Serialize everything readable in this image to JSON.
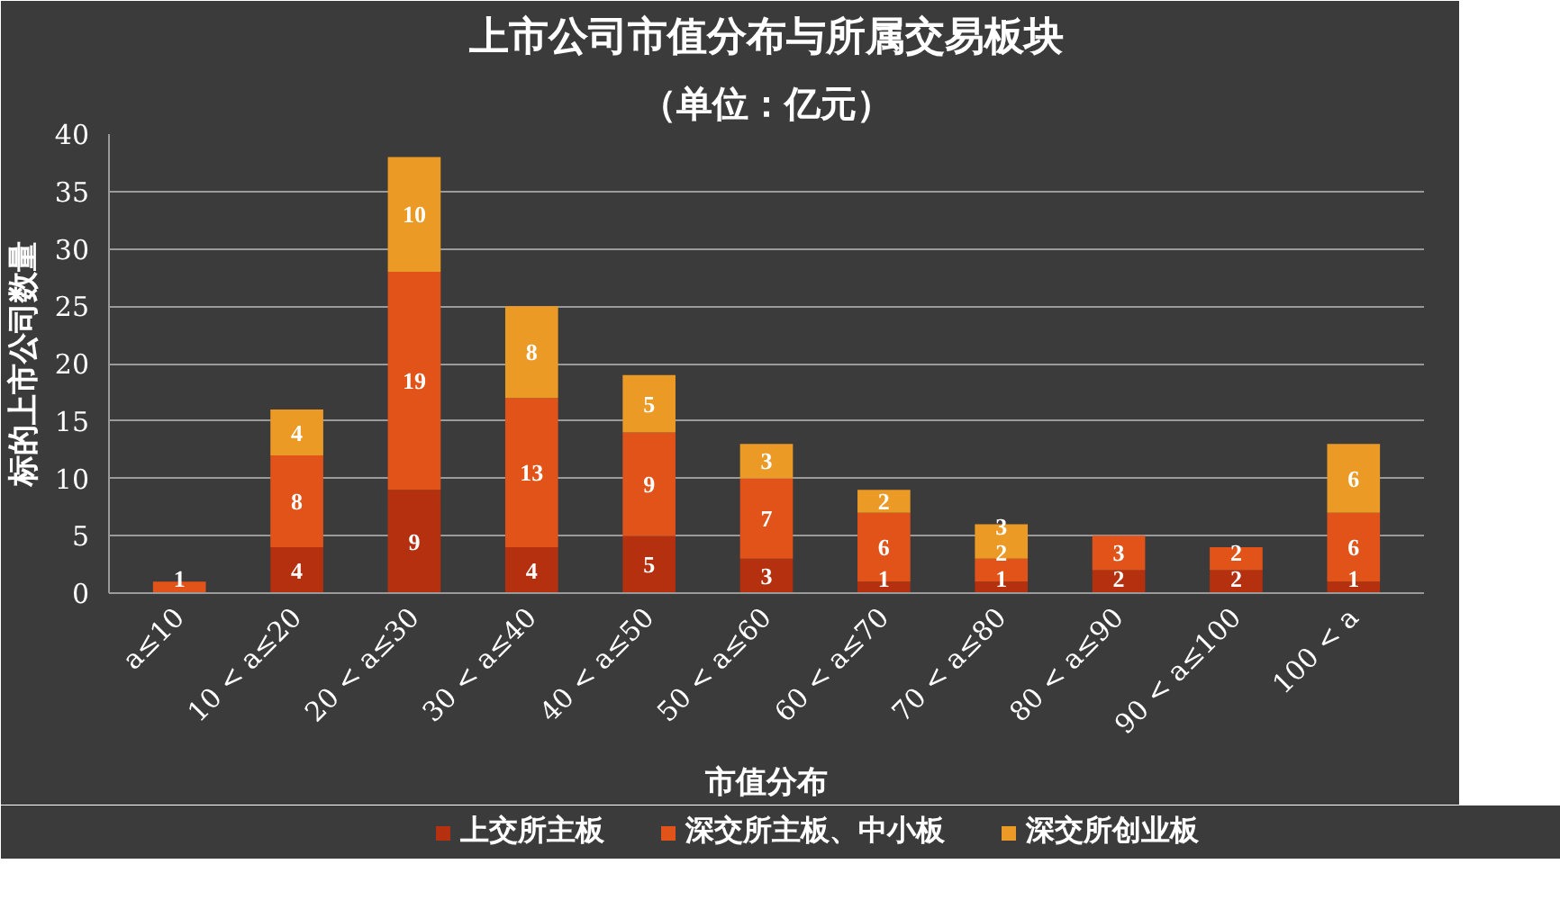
{
  "chart_data": {
    "type": "bar",
    "title": "上市公司市值分布与所属交易板块",
    "subtitle": "（单位：亿元）",
    "xlabel": "市值分布",
    "ylabel": "标的上市公司数量",
    "categories": [
      "a≤10",
      "10 < a≤20",
      "20 < a≤30",
      "30 < a≤40",
      "40 < a≤50",
      "50 < a≤60",
      "60 < a≤70",
      "70 < a≤80",
      "80 < a≤90",
      "90 < a≤100",
      "100 < a"
    ],
    "series": [
      {
        "name": "上交所主板",
        "color": "#b5300f",
        "values": [
          null,
          4,
          9,
          4,
          5,
          3,
          1,
          1,
          2,
          2,
          1
        ]
      },
      {
        "name": "深交所主板、中小板",
        "color": "#e2531a",
        "values": [
          1,
          8,
          19,
          13,
          9,
          7,
          6,
          2,
          3,
          2,
          6
        ]
      },
      {
        "name": "深交所创业板",
        "color": "#eb9a25",
        "values": [
          null,
          4,
          10,
          8,
          5,
          3,
          2,
          3,
          null,
          null,
          6
        ]
      }
    ],
    "stacked": true,
    "data_labels": true,
    "ylim": [
      0,
      40
    ],
    "yticks": [
      0,
      5,
      10,
      15,
      20,
      25,
      30,
      35,
      40
    ],
    "grid": "y",
    "legend": "bottom"
  }
}
